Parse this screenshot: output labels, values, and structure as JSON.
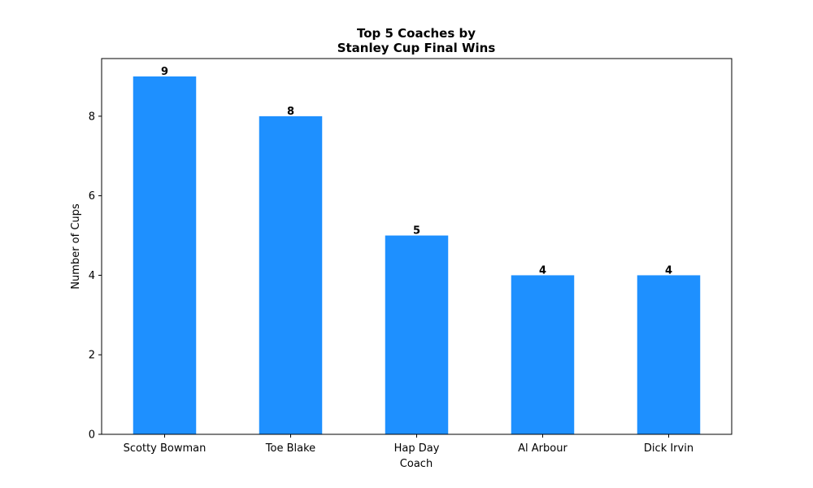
{
  "chart_data": {
    "type": "bar",
    "title_lines": [
      "Top 5 Coaches by",
      "Stanley Cup Final Wins"
    ],
    "xlabel": "Coach",
    "ylabel": "Number of Cups",
    "categories": [
      "Scotty Bowman",
      "Toe Blake",
      "Hap Day",
      "Al Arbour",
      "Dick Irvin"
    ],
    "values": [
      9,
      8,
      5,
      4,
      4
    ],
    "data_labels": [
      "9",
      "8",
      "5",
      "4",
      "4"
    ],
    "ylim": [
      0,
      9.45
    ],
    "yticks": [
      0,
      2,
      4,
      6,
      8
    ],
    "ytick_labels": [
      "0",
      "2",
      "4",
      "6",
      "8"
    ],
    "grid": false,
    "bar_color": "#1e90ff"
  }
}
